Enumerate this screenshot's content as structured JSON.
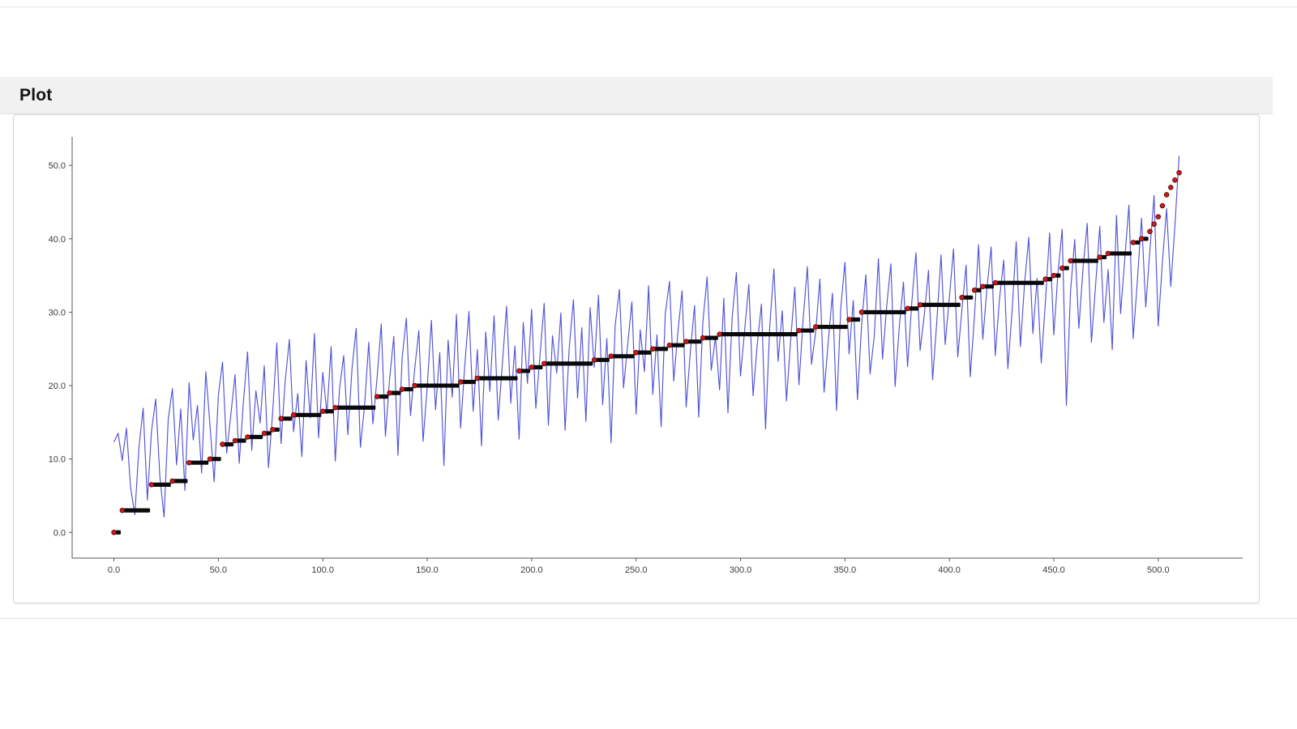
{
  "panel": {
    "title": "Plot"
  },
  "chart_data": {
    "type": "line",
    "title": "",
    "xlabel": "",
    "ylabel": "",
    "grid": false,
    "legend_position": "none",
    "x_ticks": [
      "0.0",
      "50.0",
      "100.0",
      "150.0",
      "200.0",
      "250.0",
      "300.0",
      "350.0",
      "400.0",
      "450.0",
      "500.0"
    ],
    "y_ticks": [
      "0.0",
      "10.0",
      "20.0",
      "30.0",
      "40.0",
      "50.0"
    ],
    "x_range": [
      -20,
      535
    ],
    "y_range": [
      -3.5,
      53
    ],
    "x_start": 0,
    "x_step": 2,
    "n_points": 256,
    "colors": {
      "raw_line": "#3a3ad0",
      "sorted_marker": "#0a0a0a",
      "sorted_point": "#cf1717",
      "axis": "#555555",
      "tick_text": "#3b3b3b"
    },
    "series": [
      {
        "name": "raw-values-line",
        "type": "line",
        "color": "#3a3ad0",
        "values": [
          12.3,
          13.5,
          9.8,
          14.2,
          6.1,
          2.4,
          11.7,
          16.9,
          4.4,
          13.8,
          18.2,
          7.6,
          2.1,
          15.4,
          19.6,
          9.2,
          16.8,
          5.7,
          20.4,
          12.6,
          17.3,
          8.1,
          21.9,
          14.5,
          6.9,
          18.7,
          23.2,
          10.8,
          16.1,
          21.5,
          9.4,
          17.8,
          24.6,
          11.2,
          19.3,
          14.9,
          22.7,
          8.8,
          16.4,
          25.8,
          12.1,
          20.6,
          26.3,
          13.7,
          18.9,
          10.3,
          23.4,
          15.6,
          27.1,
          12.9,
          21.8,
          16.2,
          25.3,
          9.7,
          19.5,
          24.1,
          13.3,
          22.4,
          27.8,
          11.6,
          17.2,
          25.9,
          14.8,
          21.1,
          28.4,
          13.1,
          20.9,
          26.7,
          10.5,
          23.8,
          29.2,
          15.9,
          22.3,
          27.5,
          12.4,
          19.8,
          28.9,
          16.7,
          24.5,
          9.1,
          26.2,
          18.4,
          29.7,
          14.2,
          22.8,
          30.1,
          16.5,
          24.9,
          11.8,
          27.3,
          19.2,
          29.5,
          15.3,
          23.1,
          30.8,
          17.6,
          25.4,
          12.7,
          28.6,
          20.3,
          30.4,
          16.9,
          24.2,
          31.2,
          14.6,
          26.8,
          21.7,
          29.9,
          13.9,
          25.1,
          31.7,
          18.3,
          27.9,
          15.1,
          30.6,
          22.5,
          32.3,
          17.4,
          26.4,
          12.2,
          28.2,
          33.1,
          19.7,
          25.7,
          31.4,
          16.1,
          27.6,
          21.9,
          33.6,
          18.8,
          26.9,
          14.4,
          29.8,
          34.2,
          20.6,
          27.2,
          32.9,
          17.1,
          24.7,
          30.9,
          15.7,
          28.7,
          34.8,
          22.1,
          26.6,
          19.4,
          31.9,
          16.3,
          29.3,
          35.4,
          21.3,
          27.7,
          33.8,
          18.6,
          25.5,
          31.1,
          14.1,
          28.1,
          35.9,
          23.3,
          30.2,
          17.9,
          26.1,
          33.4,
          20.1,
          29.1,
          36.2,
          22.9,
          27.4,
          34.5,
          19.1,
          25.9,
          32.6,
          16.6,
          30.6,
          36.8,
          24.3,
          31.6,
          18.1,
          28.3,
          35.1,
          21.6,
          26.6,
          37.3,
          23.6,
          30.9,
          36.6,
          19.9,
          27.9,
          34.1,
          22.6,
          31.3,
          38.1,
          24.8,
          29.6,
          35.7,
          20.8,
          28.8,
          37.8,
          25.6,
          32.1,
          38.6,
          23.9,
          30.3,
          36.4,
          21.2,
          29.4,
          39.2,
          26.3,
          33.2,
          38.9,
          24.1,
          31.8,
          37.1,
          22.3,
          30.1,
          39.6,
          25.3,
          33.9,
          40.2,
          27.1,
          34.6,
          23.1,
          31.5,
          40.8,
          26.9,
          35.3,
          41.3,
          17.3,
          32.8,
          39.9,
          27.8,
          36.1,
          42.1,
          25.9,
          33.6,
          41.7,
          28.6,
          35.8,
          24.9,
          43.2,
          29.8,
          37.4,
          44.6,
          26.4,
          34.3,
          42.8,
          30.7,
          38.4,
          45.9,
          28.1,
          36.9,
          44.1,
          33.5,
          41.8,
          51.3
        ]
      },
      {
        "name": "sorted-values-markers",
        "type": "step-points",
        "marker_color": "#0a0a0a",
        "highlight_color": "#cf1717",
        "steps": [
          [
            0,
            0
          ],
          [
            4,
            3
          ],
          [
            18,
            6.5
          ],
          [
            28,
            7
          ],
          [
            36,
            9.5
          ],
          [
            46,
            10
          ],
          [
            52,
            12
          ],
          [
            58,
            12.5
          ],
          [
            64,
            13
          ],
          [
            72,
            13.5
          ],
          [
            76,
            14
          ],
          [
            80,
            15.5
          ],
          [
            86,
            16
          ],
          [
            100,
            16.5
          ],
          [
            106,
            17
          ],
          [
            126,
            18.5
          ],
          [
            132,
            19
          ],
          [
            138,
            19.5
          ],
          [
            144,
            20
          ],
          [
            166,
            20.5
          ],
          [
            174,
            21
          ],
          [
            194,
            22
          ],
          [
            200,
            22.5
          ],
          [
            206,
            23
          ],
          [
            230,
            23.5
          ],
          [
            238,
            24
          ],
          [
            250,
            24.5
          ],
          [
            258,
            25
          ],
          [
            266,
            25.5
          ],
          [
            274,
            26
          ],
          [
            282,
            26.5
          ],
          [
            290,
            27
          ],
          [
            328,
            27.5
          ],
          [
            336,
            28
          ],
          [
            352,
            29
          ],
          [
            358,
            30
          ],
          [
            380,
            30.5
          ],
          [
            386,
            31
          ],
          [
            406,
            32
          ],
          [
            412,
            33
          ],
          [
            416,
            33.5
          ],
          [
            422,
            34
          ],
          [
            446,
            34.5
          ],
          [
            450,
            35
          ],
          [
            454,
            36
          ],
          [
            458,
            37
          ],
          [
            472,
            37.5
          ],
          [
            476,
            38
          ],
          [
            488,
            39.5
          ],
          [
            492,
            40
          ],
          [
            496,
            41
          ],
          [
            498,
            42
          ],
          [
            500,
            43
          ],
          [
            502,
            44.5
          ],
          [
            504,
            46
          ],
          [
            506,
            47
          ],
          [
            508,
            48
          ],
          [
            510,
            49
          ]
        ]
      }
    ]
  }
}
